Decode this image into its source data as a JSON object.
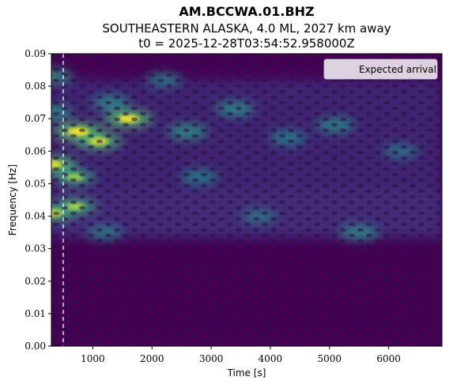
{
  "title": {
    "station": "AM.BCCWA.01.BHZ",
    "event": "SOUTHEASTERN ALASKA, 4.0 ML, 2027 km away",
    "t0": "t0 = 2025-12-28T03:54:52.958000Z"
  },
  "chart_data": {
    "type": "heatmap",
    "colormap": "viridis",
    "xlabel": "Time [s]",
    "ylabel": "Frequency [Hz]",
    "xlim": [
      300,
      6900
    ],
    "ylim": [
      0.0,
      0.09
    ],
    "xticks": [
      1000,
      2000,
      3000,
      4000,
      5000,
      6000
    ],
    "xtick_labels": [
      "1000",
      "2000",
      "3000",
      "4000",
      "5000",
      "6000"
    ],
    "yticks": [
      0.0,
      0.01,
      0.02,
      0.03,
      0.04,
      0.05,
      0.06,
      0.07,
      0.08,
      0.09
    ],
    "ytick_labels": [
      "0.00",
      "0.01",
      "0.02",
      "0.03",
      "0.04",
      "0.05",
      "0.06",
      "0.07",
      "0.08",
      "0.09"
    ],
    "expected_arrival_time": 500,
    "legend": {
      "placement": "top-right",
      "entries": [
        "Expected arrival"
      ]
    },
    "grid": false,
    "hot_spots": [
      {
        "time": 320,
        "freq": 0.056,
        "intensity": 0.9
      },
      {
        "time": 320,
        "freq": 0.041,
        "intensity": 0.8
      },
      {
        "time": 320,
        "freq": 0.083,
        "intensity": 0.55
      },
      {
        "time": 320,
        "freq": 0.072,
        "intensity": 0.5
      },
      {
        "time": 750,
        "freq": 0.066,
        "intensity": 1.0
      },
      {
        "time": 1100,
        "freq": 0.063,
        "intensity": 0.85
      },
      {
        "time": 1600,
        "freq": 0.07,
        "intensity": 0.95
      },
      {
        "time": 700,
        "freq": 0.052,
        "intensity": 0.65
      },
      {
        "time": 700,
        "freq": 0.043,
        "intensity": 0.7
      },
      {
        "time": 1300,
        "freq": 0.075,
        "intensity": 0.45
      },
      {
        "time": 2600,
        "freq": 0.066,
        "intensity": 0.55
      },
      {
        "time": 3400,
        "freq": 0.073,
        "intensity": 0.5
      },
      {
        "time": 2800,
        "freq": 0.052,
        "intensity": 0.4
      },
      {
        "time": 4300,
        "freq": 0.064,
        "intensity": 0.4
      },
      {
        "time": 5500,
        "freq": 0.035,
        "intensity": 0.5
      },
      {
        "time": 5100,
        "freq": 0.068,
        "intensity": 0.45
      },
      {
        "time": 6200,
        "freq": 0.06,
        "intensity": 0.3
      },
      {
        "time": 3800,
        "freq": 0.04,
        "intensity": 0.3
      },
      {
        "time": 1200,
        "freq": 0.035,
        "intensity": 0.35
      },
      {
        "time": 2200,
        "freq": 0.082,
        "intensity": 0.35
      }
    ]
  },
  "colors": {
    "viridis_dark": "#440154",
    "viridis_mid": "#21918c",
    "viridis_bright": "#fde725",
    "arrival_line": "#ffffff",
    "legend_bg": "#ffffff"
  }
}
